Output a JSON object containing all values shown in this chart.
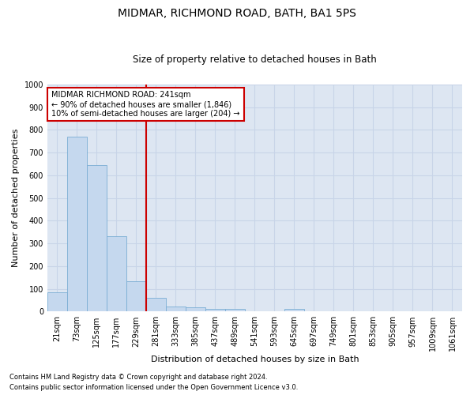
{
  "title": "MIDMAR, RICHMOND ROAD, BATH, BA1 5PS",
  "subtitle": "Size of property relative to detached houses in Bath",
  "xlabel": "Distribution of detached houses by size in Bath",
  "ylabel": "Number of detached properties",
  "footnote1": "Contains HM Land Registry data © Crown copyright and database right 2024.",
  "footnote2": "Contains public sector information licensed under the Open Government Licence v3.0.",
  "bar_labels": [
    "21sqm",
    "73sqm",
    "125sqm",
    "177sqm",
    "229sqm",
    "281sqm",
    "333sqm",
    "385sqm",
    "437sqm",
    "489sqm",
    "541sqm",
    "593sqm",
    "645sqm",
    "697sqm",
    "749sqm",
    "801sqm",
    "853sqm",
    "905sqm",
    "957sqm",
    "1009sqm",
    "1061sqm"
  ],
  "bar_values": [
    83,
    770,
    645,
    330,
    135,
    60,
    23,
    20,
    13,
    10,
    0,
    0,
    13,
    0,
    0,
    0,
    0,
    0,
    0,
    0,
    0
  ],
  "bar_color": "#c5d8ee",
  "bar_edge_color": "#7aadd4",
  "vline_pos": 4.5,
  "vline_color": "#cc0000",
  "annotation_line1": "MIDMAR RICHMOND ROAD: 241sqm",
  "annotation_line2": "← 90% of detached houses are smaller (1,846)",
  "annotation_line3": "10% of semi-detached houses are larger (204) →",
  "annotation_box_color": "#ffffff",
  "annotation_box_edge": "#cc0000",
  "ylim": [
    0,
    1000
  ],
  "yticks": [
    0,
    100,
    200,
    300,
    400,
    500,
    600,
    700,
    800,
    900,
    1000
  ],
  "grid_color": "#c8d4e8",
  "background_color": "#dde6f2"
}
